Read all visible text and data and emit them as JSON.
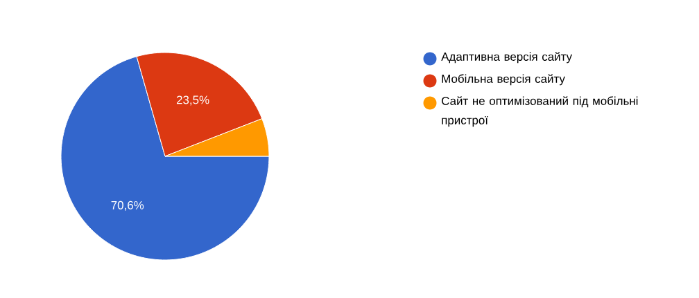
{
  "chart_data": {
    "type": "pie",
    "categories": [
      "Адаптивна версія сайту",
      "Мобільна версія сайту",
      "Сайт не оптимізований під мобільні пристрої"
    ],
    "values": [
      70.6,
      23.5,
      5.9
    ],
    "colors": [
      "#3366cc",
      "#dc3912",
      "#ff9900"
    ],
    "value_labels": [
      "70,6%",
      "23,5%",
      null
    ],
    "legend": "right"
  }
}
